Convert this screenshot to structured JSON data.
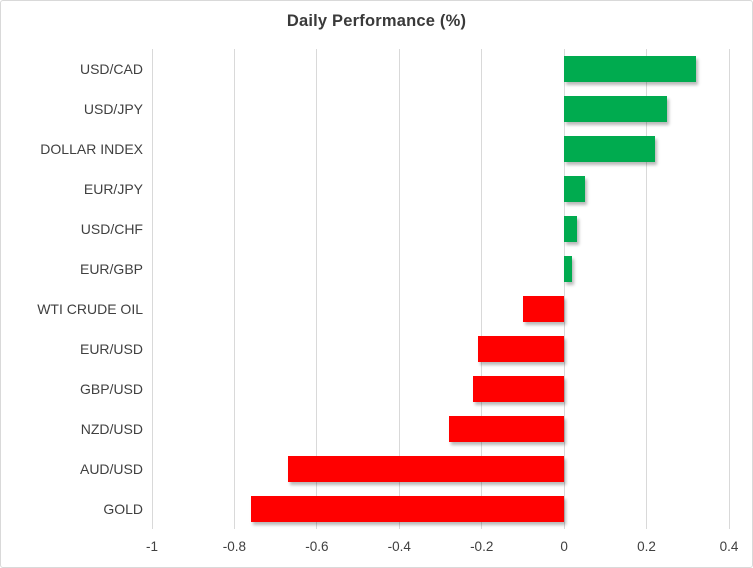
{
  "chart_data": {
    "type": "bar",
    "orientation": "horizontal",
    "title": "Daily Performance (%)",
    "categories": [
      "USD/CAD",
      "USD/JPY",
      "DOLLAR INDEX",
      "EUR/JPY",
      "USD/CHF",
      "EUR/GBP",
      "WTI CRUDE OIL",
      "EUR/USD",
      "GBP/USD",
      "NZD/USD",
      "AUD/USD",
      "GOLD"
    ],
    "values": [
      0.32,
      0.25,
      0.22,
      0.05,
      0.03,
      0.02,
      -0.1,
      -0.21,
      -0.22,
      -0.28,
      -0.67,
      -0.76
    ],
    "xlabel": "",
    "ylabel": "",
    "xlim": [
      -1,
      0.4
    ],
    "xticks": [
      -1,
      -0.8,
      -0.6,
      -0.4,
      -0.2,
      0,
      0.2,
      0.4
    ],
    "xtick_labels": [
      "-1",
      "-0.8",
      "-0.6",
      "-0.4",
      "-0.2",
      "0",
      "0.2",
      "0.4"
    ],
    "grid": true,
    "legend": false,
    "positive_color": "#00AB4F",
    "negative_color": "#FF0000",
    "gridline_color": "#D9D9D9",
    "axis_text_color": "#404040",
    "title_color": "#3A3A3A",
    "border_color": "#D9D9D9"
  }
}
